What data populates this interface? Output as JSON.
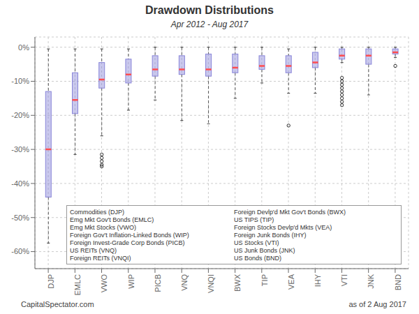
{
  "chart_data": {
    "type": "box",
    "title": "Drawdown Distributions",
    "subtitle": "Apr 2012 - Aug 2017",
    "annotations": {
      "footer_left": "CapitalSpectator.com",
      "footer_right": "as of 2 Aug 2017",
      "key_left": [
        "Commodities (DJP)",
        "Emg Mkt Gov't Bonds (EMLC)",
        "Emg Mkt Stocks (VWO)",
        "Foreign Gov't Inflation-Linked Bonds (WIP)",
        "Foreign Invest-Grade Corp Bonds (PICB)",
        "US REITs (VNQ)",
        "Foreign REITs (VNQI)"
      ],
      "key_right": [
        "Foreign Devlp'd Mkt Gov't Bonds (BWX)",
        "US TIPS (TIP)",
        "Foreign Stocks Devlp'd Mkts (VEA)",
        "Foreign Junk Bonds (IHY)",
        "US Stocks (VTI)",
        "US Junk Bonds (JNK)",
        "US Bonds (BND)"
      ]
    },
    "categories": [
      "DJP",
      "EMLC",
      "VWO",
      "WIP",
      "PICB",
      "VNQ",
      "VNQI",
      "BWX",
      "TIP",
      "VEA",
      "IHY",
      "VTI",
      "JNK",
      "BND"
    ],
    "boxes": [
      {
        "whislo": -57.5,
        "q1": -44.0,
        "median": -30.0,
        "q3": -13.0,
        "whishi": -0.5,
        "fliers": []
      },
      {
        "whislo": -31.5,
        "q1": -19.5,
        "median": -15.5,
        "q3": -7.5,
        "whishi": -0.5,
        "fliers": []
      },
      {
        "whislo": -26.0,
        "q1": -12.0,
        "median": -9.5,
        "q3": -4.5,
        "whishi": -0.5,
        "fliers": [
          -31.5,
          -32.5,
          -33.5,
          -34.5,
          -35.0
        ]
      },
      {
        "whislo": -18.5,
        "q1": -10.5,
        "median": -8.0,
        "q3": -3.5,
        "whishi": -0.5,
        "fliers": []
      },
      {
        "whislo": -15.5,
        "q1": -8.5,
        "median": -6.5,
        "q3": -2.5,
        "whishi": -0.0,
        "fliers": []
      },
      {
        "whislo": -21.5,
        "q1": -8.0,
        "median": -6.5,
        "q3": -2.5,
        "whishi": -0.0,
        "fliers": []
      },
      {
        "whislo": -22.5,
        "q1": -8.5,
        "median": -6.5,
        "q3": -2.0,
        "whishi": -0.0,
        "fliers": []
      },
      {
        "whislo": -15.0,
        "q1": -7.5,
        "median": -6.0,
        "q3": -2.0,
        "whishi": -0.0,
        "fliers": []
      },
      {
        "whislo": -10.5,
        "q1": -6.5,
        "median": -5.5,
        "q3": -2.5,
        "whishi": -0.0,
        "fliers": []
      },
      {
        "whislo": -13.5,
        "q1": -7.5,
        "median": -5.5,
        "q3": -2.5,
        "whishi": -0.5,
        "fliers": [
          -23.0
        ]
      },
      {
        "whislo": -13.5,
        "q1": -6.0,
        "median": -4.5,
        "q3": -1.5,
        "whishi": -0.0,
        "fliers": []
      },
      {
        "whislo": -4.5,
        "q1": -3.5,
        "median": -2.5,
        "q3": -0.5,
        "whishi": -0.0,
        "fliers": [
          -9.0,
          -10.0,
          -11.0,
          -12.0,
          -13.0,
          -14.0,
          -15.0,
          -16.0,
          -17.0
        ]
      },
      {
        "whislo": -14.0,
        "q1": -5.0,
        "median": -2.5,
        "q3": -0.5,
        "whishi": -0.0,
        "fliers": []
      },
      {
        "whislo": -3.0,
        "q1": -2.0,
        "median": -1.5,
        "q3": -0.5,
        "whishi": -0.0,
        "fliers": [
          -5.5
        ]
      }
    ],
    "ylim": [
      -65,
      3
    ],
    "yticks": [
      {
        "value": 0,
        "label": "0%"
      },
      {
        "value": -10,
        "label": "-10%"
      },
      {
        "value": -20,
        "label": "-20%"
      },
      {
        "value": -30,
        "label": "-30%"
      },
      {
        "value": -40,
        "label": "-40%"
      },
      {
        "value": -50,
        "label": "-50%"
      },
      {
        "value": -60,
        "label": "-60%"
      }
    ],
    "grid": true
  }
}
